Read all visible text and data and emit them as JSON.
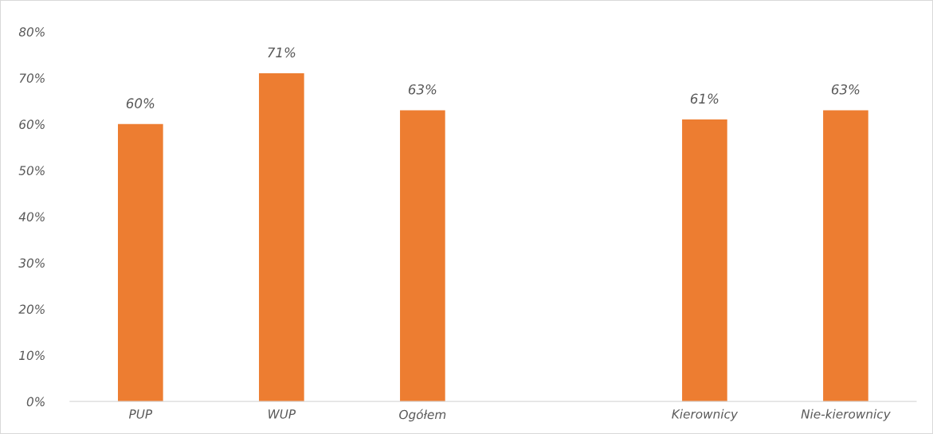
{
  "chart_data": {
    "type": "bar",
    "categories": [
      "PUP",
      "WUP",
      "Ogółem",
      null,
      "Kierownicy",
      "Nie-kierownicy"
    ],
    "values": [
      60,
      71,
      63,
      null,
      61,
      63
    ],
    "value_labels": [
      "60%",
      "71%",
      "63%",
      null,
      "61%",
      "63%"
    ],
    "color": "#ed7d31",
    "ylim": [
      0,
      80
    ],
    "yticks": [
      {
        "value": 0,
        "label": "0%"
      },
      {
        "value": 10,
        "label": "10%"
      },
      {
        "value": 20,
        "label": "20%"
      },
      {
        "value": 30,
        "label": "30%"
      },
      {
        "value": 40,
        "label": "40%"
      },
      {
        "value": 50,
        "label": "50%"
      },
      {
        "value": 60,
        "label": "60%"
      },
      {
        "value": 70,
        "label": "70%"
      },
      {
        "value": 80,
        "label": "80%"
      }
    ],
    "grid": false,
    "legend": false
  }
}
